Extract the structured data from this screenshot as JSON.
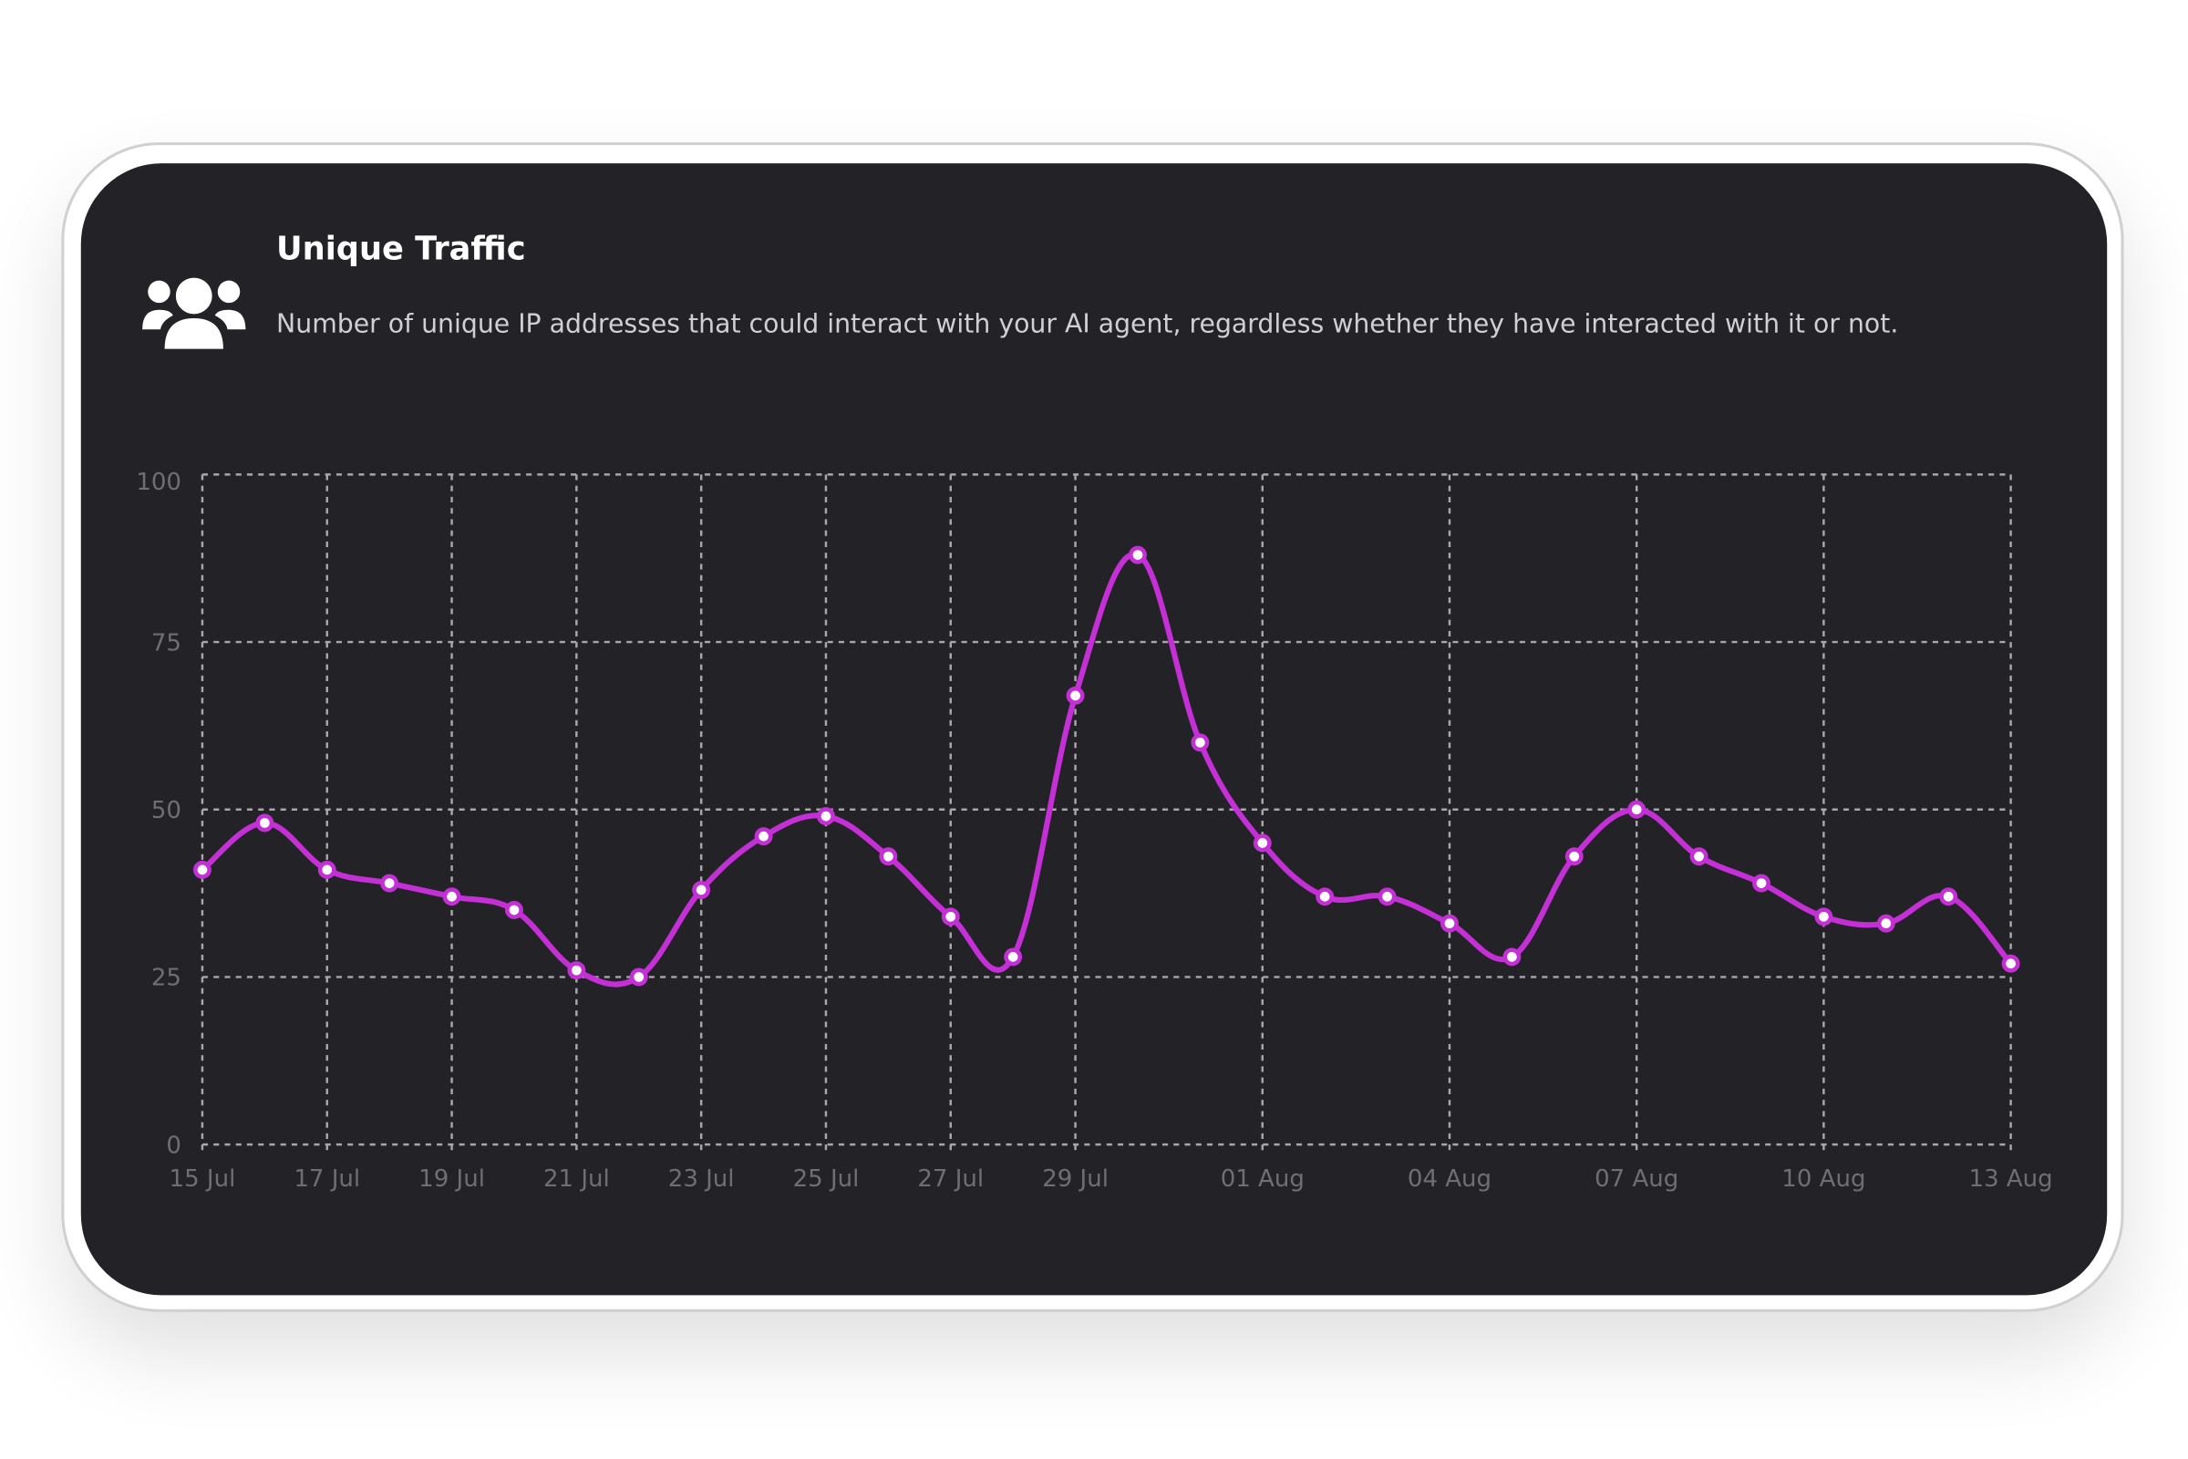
{
  "chart_data": {
    "type": "line",
    "title": "Unique Traffic",
    "subtitle": "Number of unique IP addresses that could interact with your AI agent, regardless whether they have interacted with it or not.",
    "categories": [
      "15 Jul",
      null,
      "17 Jul",
      null,
      "19 Jul",
      null,
      "21 Jul",
      null,
      "23 Jul",
      null,
      "25 Jul",
      null,
      "27 Jul",
      null,
      "29 Jul",
      null,
      null,
      "01 Aug",
      null,
      null,
      "04 Aug",
      null,
      null,
      "07 Aug",
      null,
      null,
      "10 Aug",
      null,
      null,
      "13 Aug"
    ],
    "values": [
      41,
      48,
      41,
      39,
      37,
      35,
      26,
      25,
      38,
      46,
      49,
      43,
      34,
      28,
      67,
      88,
      60,
      45,
      37,
      37,
      33,
      28,
      43,
      50,
      43,
      39,
      34,
      33,
      37,
      27
    ],
    "color": "#c42fd6",
    "ylim": [
      0,
      100
    ],
    "yticks": [
      0,
      25,
      50,
      75,
      100
    ],
    "grid": true
  }
}
